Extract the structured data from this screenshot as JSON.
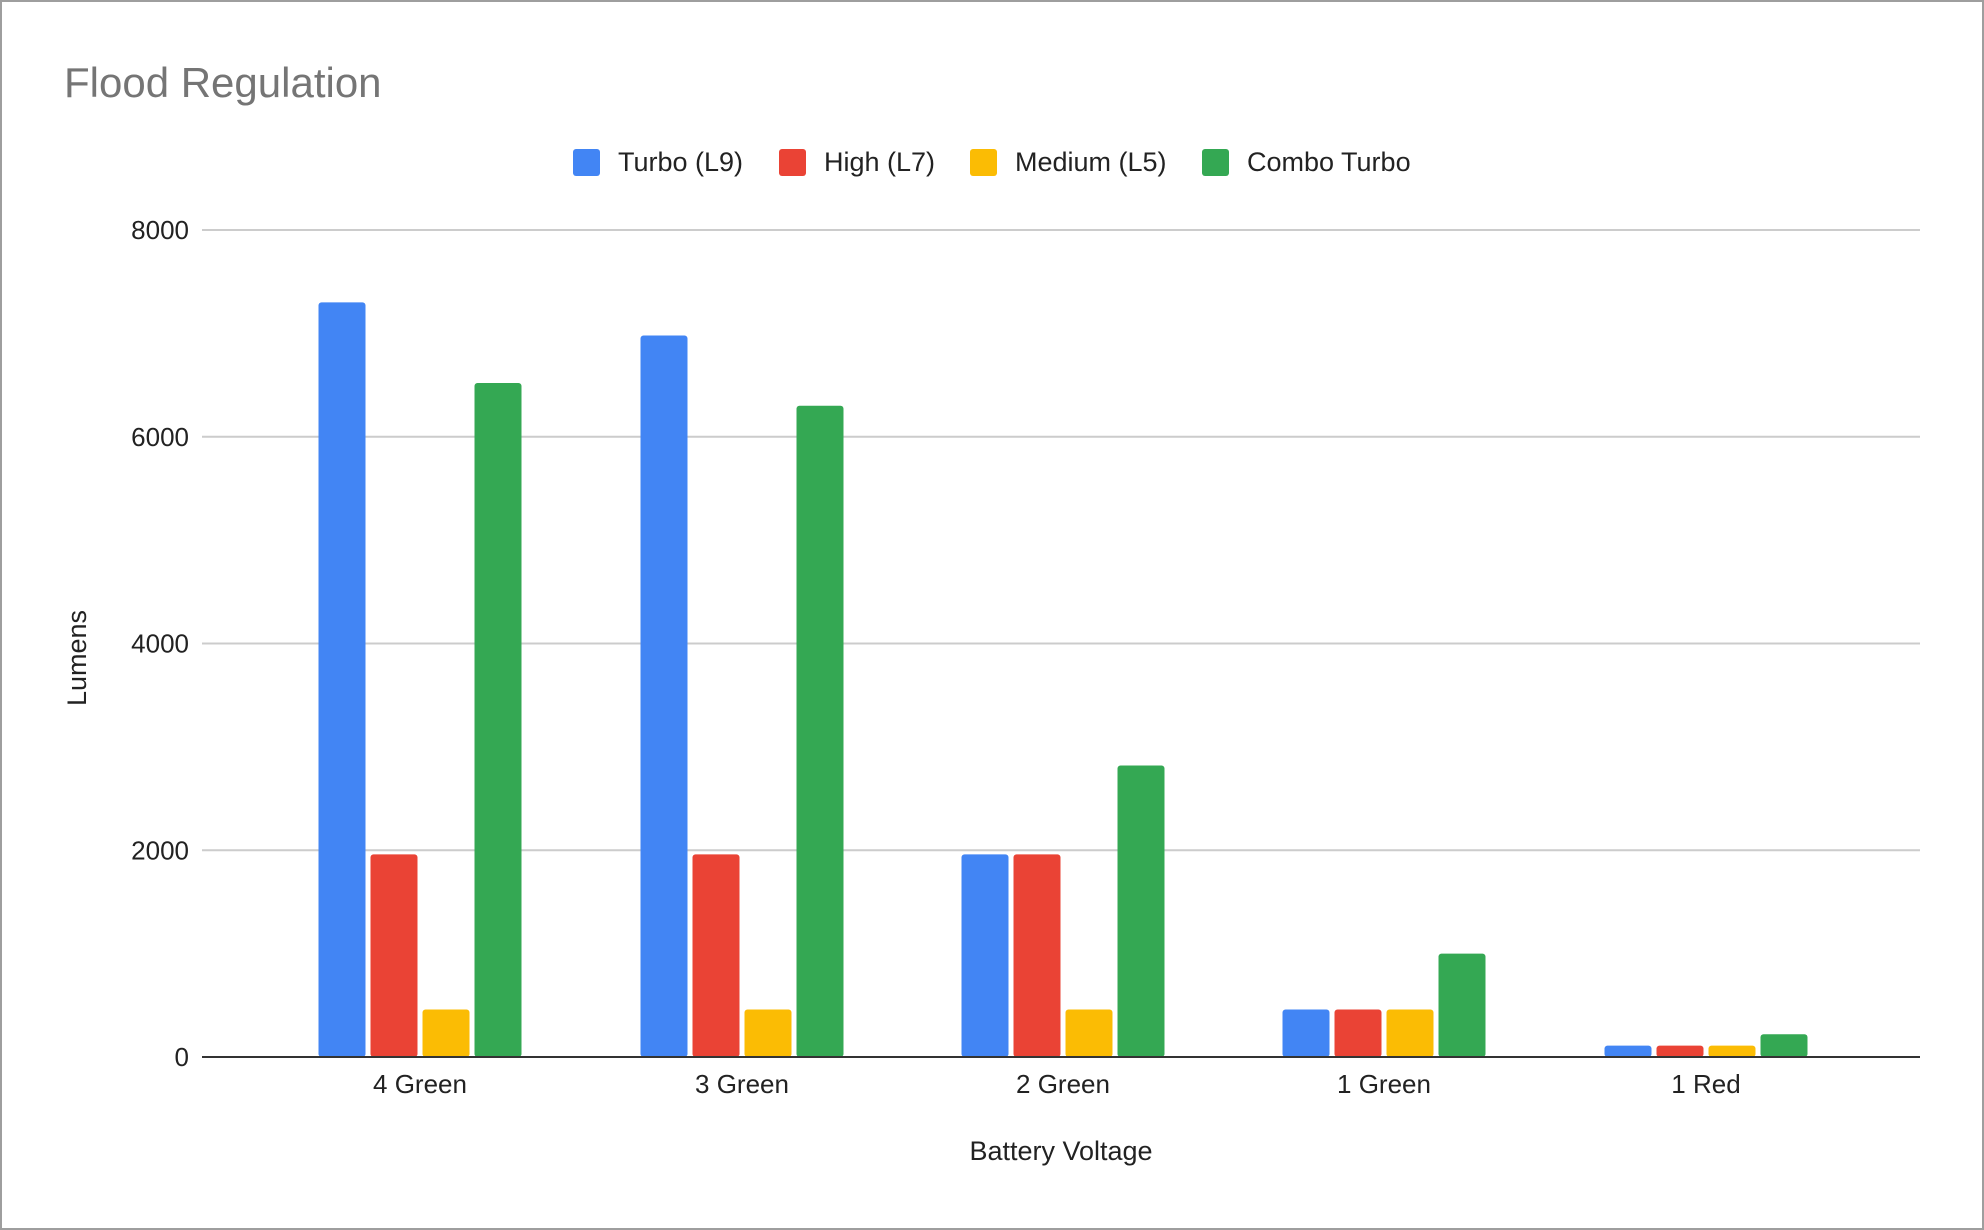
{
  "chart_data": {
    "type": "bar",
    "title": "Flood Regulation",
    "xlabel": "Battery Voltage",
    "ylabel": "Lumens",
    "ylim": [
      0,
      8000
    ],
    "yticks": [
      "0",
      "2000",
      "4000",
      "6000",
      "8000"
    ],
    "grid": true,
    "legend_position": "top-center",
    "categories": [
      "4 Green",
      "3 Green",
      "2 Green",
      "1 Green",
      "1 Red"
    ],
    "series": [
      {
        "name": "Turbo (L9)",
        "color": "#4285F4",
        "values": [
          7300,
          6980,
          1960,
          460,
          110
        ]
      },
      {
        "name": "High (L7)",
        "color": "#EA4335",
        "values": [
          1960,
          1960,
          1960,
          460,
          110
        ]
      },
      {
        "name": "Medium (L5)",
        "color": "#FBBC04",
        "values": [
          460,
          460,
          460,
          460,
          110
        ]
      },
      {
        "name": "Combo Turbo",
        "color": "#34A853",
        "values": [
          6520,
          6300,
          2820,
          1000,
          220
        ]
      }
    ]
  }
}
